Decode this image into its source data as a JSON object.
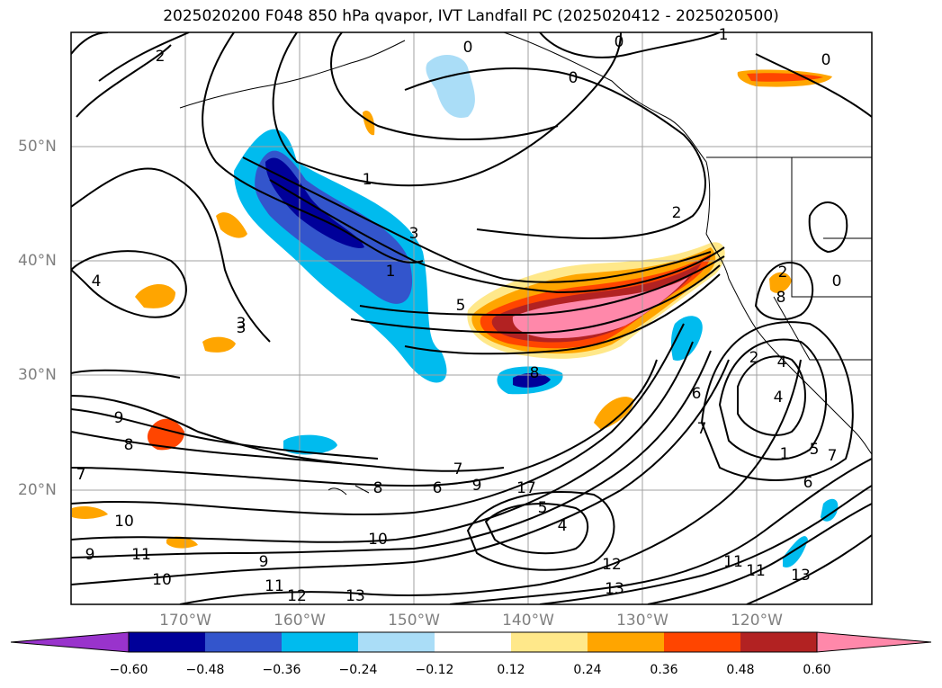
{
  "title": "2025020200 F048 850 hPa qvapor, IVT Landfall PC (2025020412 - 2025020500)",
  "lat_labels": [
    "50°N",
    "40°N",
    "30°N",
    "20°N"
  ],
  "lon_labels": [
    "170°W",
    "160°W",
    "150°W",
    "140°W",
    "130°W",
    "120°W"
  ],
  "colorbar": {
    "colors": [
      "#9933cc",
      "#000099",
      "#3355cc",
      "#00bbee",
      "#aaddf7",
      "#ffffff",
      "#ffe88a",
      "#ffa500",
      "#ff4500",
      "#b22222",
      "#ff88aa"
    ],
    "labels": [
      "−0.60",
      "−0.48",
      "−0.36",
      "−0.24",
      "−0.12",
      "0.12",
      "0.24",
      "0.36",
      "0.48",
      "0.60"
    ]
  },
  "contour_labels": [
    "2",
    "1",
    "2",
    "3",
    "1",
    "0",
    "0",
    "0",
    "5",
    "3",
    "4",
    "8",
    "9",
    "8",
    "7",
    "8",
    "6",
    "9",
    "17",
    "10",
    "9",
    "11",
    "12",
    "13",
    "11",
    "10",
    "9",
    "7",
    "13",
    "12",
    "10",
    "4",
    "5",
    "11",
    "6",
    "7",
    "3",
    "2",
    "4",
    "4",
    "5",
    "6",
    "7",
    "8",
    "2",
    "1",
    "0",
    "1",
    "0",
    "11",
    "13"
  ]
}
